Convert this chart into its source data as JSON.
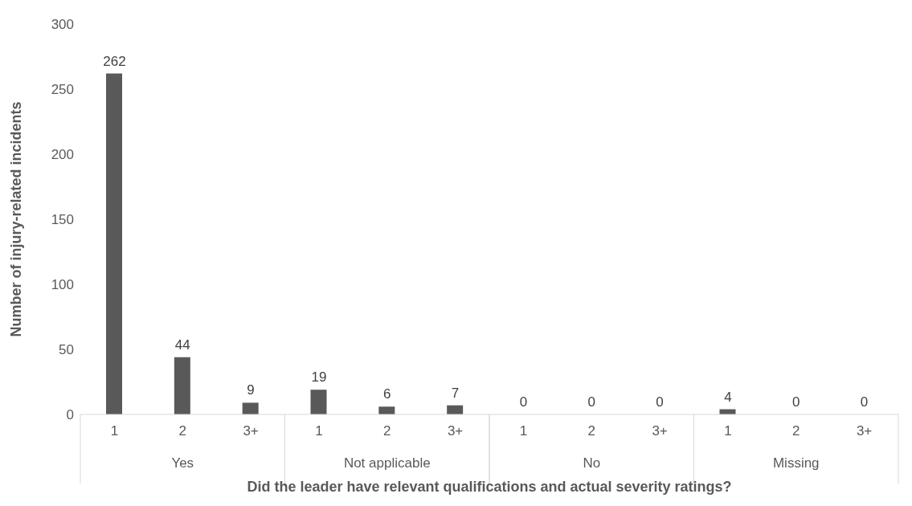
{
  "chart_data": {
    "type": "bar",
    "xlabel": "Did the leader have relevant qualifications and actual severity ratings?",
    "ylabel": "Number of injury-related incidents",
    "categories": [
      "1",
      "2",
      "3+",
      "1",
      "2",
      "3+",
      "1",
      "2",
      "3+",
      "1",
      "2",
      "3+"
    ],
    "values": [
      262,
      44,
      9,
      19,
      6,
      7,
      0,
      0,
      0,
      4,
      0,
      0
    ],
    "color": "#595959",
    "data_labels": true,
    "ylim": [
      0,
      300
    ],
    "yticks": [
      0,
      50,
      100,
      150,
      200,
      250,
      300
    ],
    "annotations": [
      "Yes",
      "Not applicable",
      "No",
      "Missing"
    ]
  }
}
